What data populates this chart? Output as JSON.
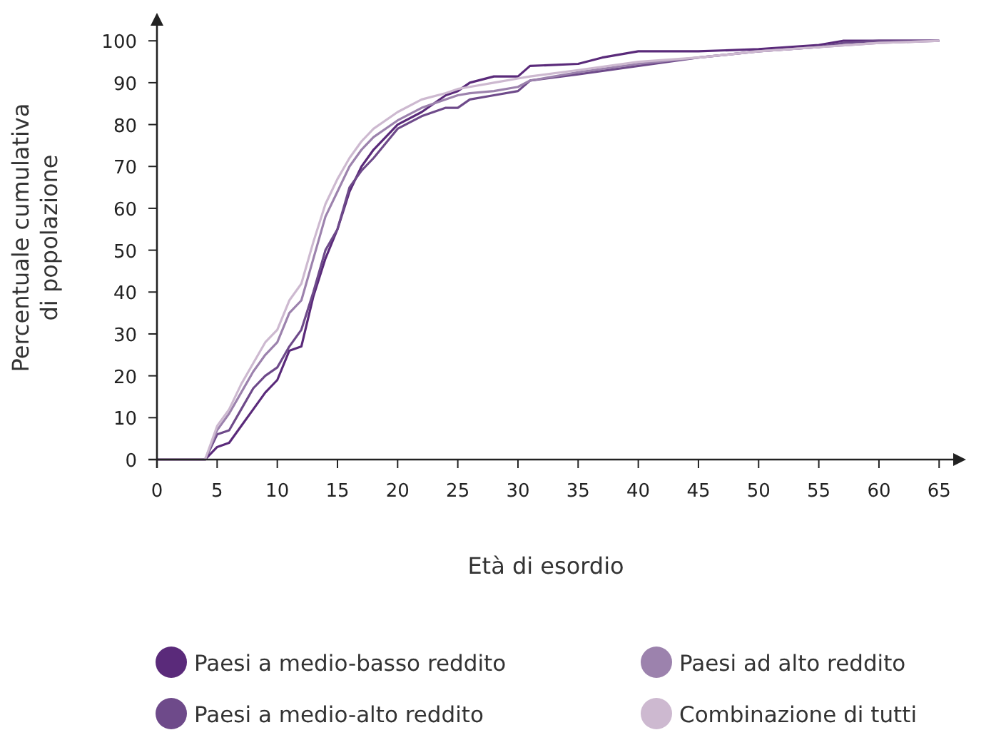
{
  "chart_data": {
    "type": "line",
    "xlabel": "Età di esordio",
    "ylabel": "Percentuale cumulativa\ndi popolazione",
    "xlim": [
      0,
      67
    ],
    "ylim": [
      0,
      106
    ],
    "xticks": [
      0,
      5,
      10,
      15,
      20,
      25,
      30,
      35,
      40,
      45,
      50,
      55,
      60,
      65
    ],
    "yticks": [
      0,
      10,
      20,
      30,
      40,
      50,
      60,
      70,
      80,
      90,
      100
    ],
    "legend": "bottom",
    "grid": false,
    "line_style": "solid",
    "series": [
      {
        "name": "Paesi a medio-basso reddito",
        "color": "#5a2a7a",
        "x": [
          0,
          4,
          5,
          6,
          7,
          8,
          9,
          10,
          11,
          12,
          13,
          14,
          15,
          16,
          17,
          18,
          20,
          22,
          24,
          25,
          26,
          28,
          30,
          31,
          35,
          37,
          40,
          45,
          50,
          55,
          57,
          65
        ],
        "values": [
          0,
          0,
          3,
          4,
          8,
          12,
          16,
          19,
          26,
          27,
          39,
          48,
          55,
          64,
          70,
          74,
          80,
          83,
          87,
          88,
          90,
          91.5,
          91.5,
          94,
          94.5,
          96,
          97.5,
          97.5,
          98,
          99,
          100,
          100
        ]
      },
      {
        "name": "Paesi a medio-alto reddito",
        "color": "#6e4a8a",
        "x": [
          0,
          4,
          5,
          6,
          7,
          8,
          9,
          10,
          11,
          12,
          13,
          14,
          15,
          16,
          17,
          18,
          20,
          22,
          24,
          25,
          26,
          28,
          30,
          31,
          35,
          40,
          45,
          50,
          55,
          57,
          60,
          65
        ],
        "values": [
          0,
          0,
          6,
          7,
          12,
          17,
          20,
          22,
          27,
          31,
          40,
          50,
          55,
          65,
          69,
          72,
          79,
          82,
          84,
          84,
          86,
          87,
          88,
          90.5,
          92,
          94,
          96,
          97.5,
          98.5,
          99.5,
          100,
          100
        ]
      },
      {
        "name": "Paesi ad alto reddito",
        "color": "#9c82ad",
        "x": [
          0,
          4,
          5,
          6,
          7,
          8,
          9,
          10,
          11,
          12,
          13,
          14,
          15,
          16,
          17,
          18,
          20,
          22,
          24,
          25,
          26,
          28,
          30,
          31,
          35,
          40,
          45,
          50,
          55,
          60,
          65
        ],
        "values": [
          0,
          0,
          7,
          11,
          16,
          21,
          25,
          28,
          35,
          38,
          48,
          58,
          64,
          70,
          74,
          77,
          81,
          84,
          86,
          87,
          87.5,
          88,
          89,
          90.5,
          92.5,
          94.5,
          96,
          97.5,
          98.5,
          99.5,
          100
        ]
      },
      {
        "name": "Combinazione di tutti",
        "color": "#cdb9d0",
        "x": [
          0,
          4,
          5,
          6,
          7,
          8,
          9,
          10,
          11,
          12,
          13,
          14,
          15,
          16,
          17,
          18,
          20,
          22,
          24,
          25,
          26,
          28,
          30,
          31,
          35,
          40,
          45,
          50,
          55,
          60,
          65
        ],
        "values": [
          0,
          0,
          8,
          12,
          18,
          23,
          28,
          31,
          38,
          42,
          52,
          61,
          67,
          72,
          76,
          79,
          83,
          86,
          87.5,
          88.5,
          89,
          90,
          91,
          91.5,
          93,
          95,
          96,
          97.5,
          98.5,
          99.5,
          100
        ]
      }
    ]
  }
}
